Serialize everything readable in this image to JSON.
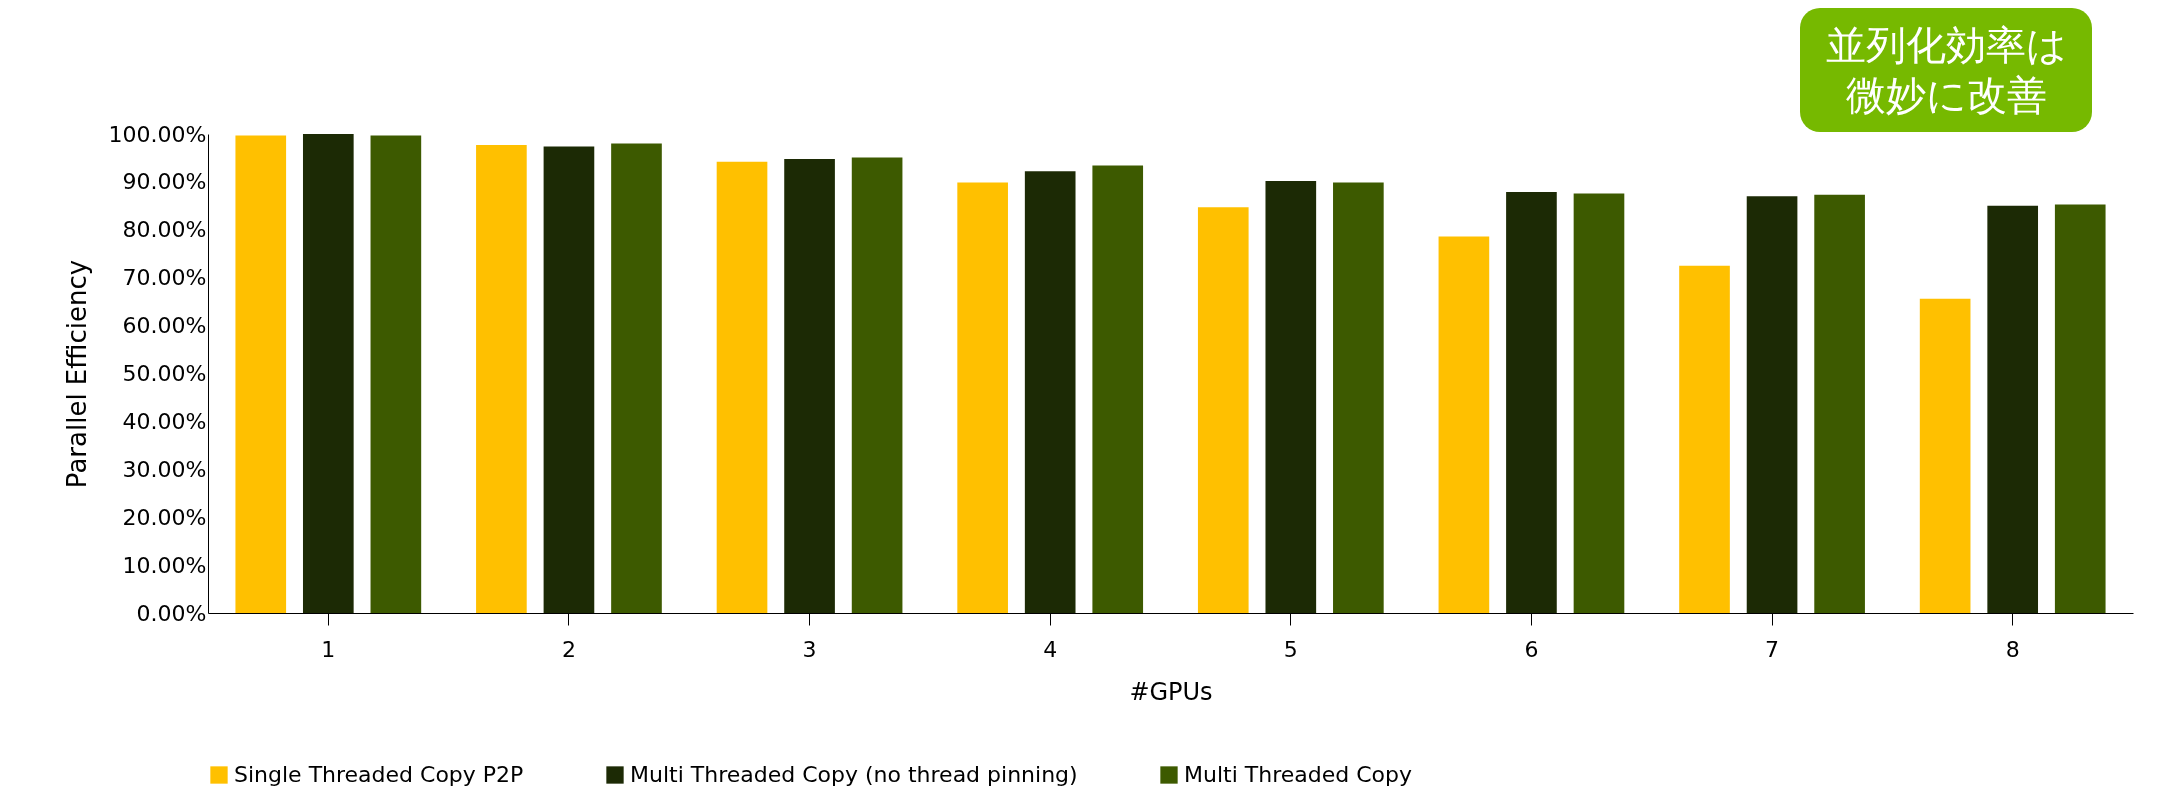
{
  "chart_data": {
    "type": "bar",
    "xlabel": "#GPUs",
    "ylabel": "Parallel Efficiency",
    "categories": [
      "1",
      "2",
      "3",
      "4",
      "5",
      "6",
      "7",
      "8"
    ],
    "series": [
      {
        "name": "Single Threaded Copy P2P",
        "color": "#ffc000",
        "values": [
          99.7,
          97.7,
          94.2,
          89.9,
          84.7,
          78.6,
          72.5,
          65.6
        ]
      },
      {
        "name": "Multi Threaded Copy (no thread pinning)",
        "color": "#1c2a05",
        "values": [
          100,
          97.4,
          94.8,
          92.2,
          90.2,
          87.9,
          87.0,
          85.0
        ]
      },
      {
        "name": "Multi Threaded Copy",
        "color": "#3d5a00",
        "values": [
          99.7,
          98.0,
          95.1,
          93.4,
          89.9,
          87.6,
          87.3,
          85.3
        ]
      }
    ],
    "ylim": [
      0,
      100
    ],
    "yticks": [
      {
        "value": 0,
        "label": "0.00%"
      },
      {
        "value": 10,
        "label": "10.00%"
      },
      {
        "value": 20,
        "label": "20.00%"
      },
      {
        "value": 30,
        "label": "30.00%"
      },
      {
        "value": 40,
        "label": "40.00%"
      },
      {
        "value": 50,
        "label": "50.00%"
      },
      {
        "value": 60,
        "label": "60.00%"
      },
      {
        "value": 70,
        "label": "70.00%"
      },
      {
        "value": 80,
        "label": "80.00%"
      },
      {
        "value": 90,
        "label": "90.00%"
      },
      {
        "value": 100,
        "label": "100.00%"
      }
    ],
    "grid": false,
    "legend": "bottom",
    "annotations": [
      "並列化効率は微妙に改善"
    ]
  }
}
